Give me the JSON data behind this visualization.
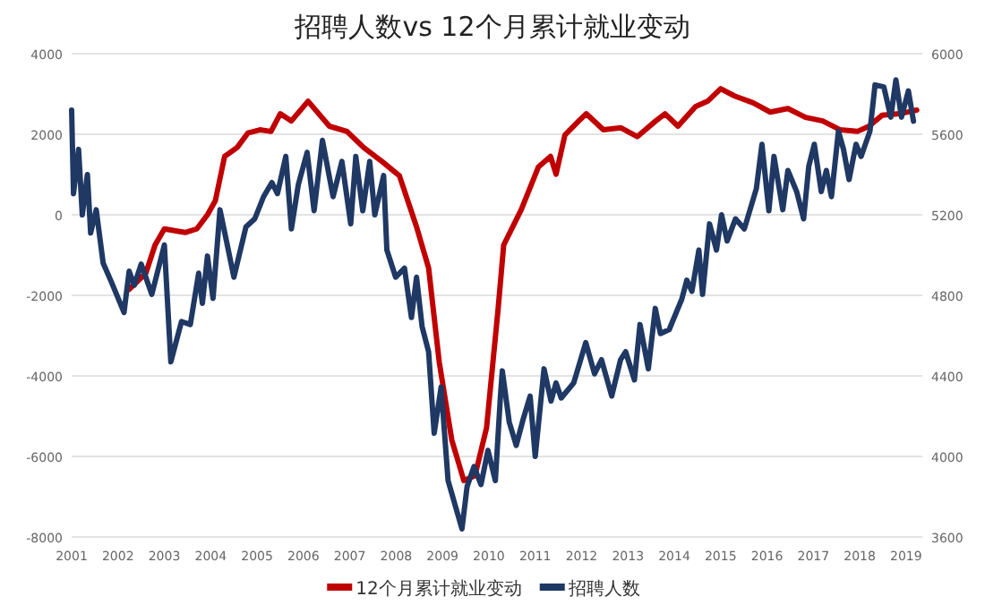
{
  "chart_data": {
    "type": "line",
    "title": "招聘人数vs 12个月累计就业变动",
    "xlim": [
      2001,
      2019.35
    ],
    "xticks": [
      2001,
      2002,
      2003,
      2004,
      2005,
      2006,
      2007,
      2008,
      2009,
      2010,
      2011,
      2012,
      2013,
      2014,
      2015,
      2016,
      2017,
      2018,
      2019
    ],
    "ylim": [
      -8000,
      4000
    ],
    "yticks": [
      -8000,
      -6000,
      -4000,
      -2000,
      0,
      2000,
      4000
    ],
    "y2lim": [
      3600,
      6000
    ],
    "y2ticks": [
      3600,
      4000,
      4400,
      4800,
      5200,
      5600,
      6000
    ],
    "grid": "y",
    "legend": "bottom",
    "series": [
      {
        "name": "12个月累计就业变动",
        "color": "#c00000",
        "x": [
          2002.24,
          2002.6,
          2002.8,
          2003.0,
          2003.25,
          2003.45,
          2003.7,
          2003.93,
          2004.1,
          2004.3,
          2004.57,
          2004.8,
          2005.06,
          2005.3,
          2005.5,
          2005.74,
          2006.1,
          2006.56,
          2006.94,
          2007.3,
          2007.7,
          2008.07,
          2008.44,
          2008.7,
          2008.93,
          2009.2,
          2009.46,
          2009.7,
          2009.95,
          2010.2,
          2010.32,
          2010.7,
          2011.07,
          2011.33,
          2011.45,
          2011.64,
          2011.94,
          2012.1,
          2012.47,
          2012.85,
          2013.2,
          2013.6,
          2013.8,
          2014.08,
          2014.46,
          2014.72,
          2015.0,
          2015.3,
          2015.7,
          2016.07,
          2016.45,
          2016.83,
          2017.2,
          2017.58,
          2017.95,
          2018.2,
          2018.48,
          2018.86,
          2019.23
        ],
        "values": [
          -1850,
          -1450,
          -750,
          -350,
          -400,
          -440,
          -350,
          0,
          350,
          1450,
          1670,
          2030,
          2110,
          2070,
          2510,
          2330,
          2820,
          2200,
          2070,
          1670,
          1320,
          970,
          -300,
          -1320,
          -3660,
          -5590,
          -6600,
          -6480,
          -5290,
          -2330,
          -750,
          130,
          1190,
          1450,
          1010,
          1980,
          2330,
          2510,
          2110,
          2160,
          1940,
          2330,
          2510,
          2200,
          2690,
          2820,
          3130,
          2950,
          2780,
          2550,
          2640,
          2420,
          2330,
          2110,
          2070,
          2200,
          2470,
          2510,
          2600
        ]
      },
      {
        "name": "招聘人数",
        "color": "#1f3864",
        "axis": "y2",
        "x": [
          2001.0,
          2001.04,
          2001.15,
          2001.23,
          2001.34,
          2001.41,
          2001.53,
          2001.68,
          2001.86,
          2002.13,
          2002.24,
          2002.35,
          2002.5,
          2002.73,
          2003.0,
          2003.14,
          2003.37,
          2003.56,
          2003.74,
          2003.82,
          2003.93,
          2004.05,
          2004.2,
          2004.38,
          2004.5,
          2004.76,
          2004.95,
          2005.14,
          2005.32,
          2005.44,
          2005.62,
          2005.74,
          2005.89,
          2006.08,
          2006.23,
          2006.41,
          2006.64,
          2006.83,
          2007.02,
          2007.13,
          2007.28,
          2007.43,
          2007.54,
          2007.73,
          2007.8,
          2007.99,
          2008.18,
          2008.33,
          2008.44,
          2008.56,
          2008.7,
          2008.82,
          2008.97,
          2009.12,
          2009.42,
          2009.53,
          2009.68,
          2009.83,
          2009.98,
          2010.14,
          2010.25,
          2010.29,
          2010.44,
          2010.59,
          2010.74,
          2010.89,
          2011.0,
          2011.19,
          2011.34,
          2011.45,
          2011.56,
          2011.83,
          2012.09,
          2012.28,
          2012.43,
          2012.65,
          2012.84,
          2012.95,
          2013.14,
          2013.26,
          2013.44,
          2013.59,
          2013.7,
          2013.89,
          2014.16,
          2014.27,
          2014.38,
          2014.53,
          2014.61,
          2014.76,
          2014.91,
          2015.02,
          2015.14,
          2015.32,
          2015.51,
          2015.77,
          2015.89,
          2016.04,
          2016.15,
          2016.34,
          2016.45,
          2016.64,
          2016.79,
          2016.9,
          2017.02,
          2017.17,
          2017.28,
          2017.39,
          2017.54,
          2017.65,
          2017.77,
          2017.92,
          2018.03,
          2018.22,
          2018.33,
          2018.52,
          2018.67,
          2018.78,
          2018.9,
          2019.05,
          2019.16
        ],
        "values": [
          5720,
          5305,
          5525,
          5200,
          5400,
          5110,
          5225,
          4960,
          4865,
          4715,
          4920,
          4850,
          4955,
          4805,
          5050,
          4470,
          4670,
          4655,
          4910,
          4760,
          4995,
          4785,
          5225,
          5025,
          4890,
          5140,
          5180,
          5290,
          5360,
          5305,
          5490,
          5130,
          5350,
          5510,
          5220,
          5570,
          5290,
          5465,
          5155,
          5490,
          5220,
          5465,
          5200,
          5395,
          5025,
          4890,
          4935,
          4690,
          4890,
          4645,
          4520,
          4115,
          4345,
          3880,
          3640,
          3850,
          3950,
          3860,
          4030,
          3880,
          4300,
          4425,
          4170,
          4055,
          4185,
          4300,
          4000,
          4435,
          4275,
          4365,
          4290,
          4365,
          4565,
          4410,
          4480,
          4300,
          4480,
          4520,
          4380,
          4655,
          4435,
          4735,
          4610,
          4630,
          4780,
          4875,
          4820,
          5025,
          4805,
          5155,
          5025,
          5200,
          5070,
          5180,
          5130,
          5330,
          5550,
          5220,
          5490,
          5225,
          5420,
          5315,
          5180,
          5440,
          5550,
          5315,
          5420,
          5290,
          5615,
          5525,
          5375,
          5550,
          5490,
          5615,
          5845,
          5835,
          5685,
          5870,
          5685,
          5815,
          5665
        ]
      }
    ]
  }
}
